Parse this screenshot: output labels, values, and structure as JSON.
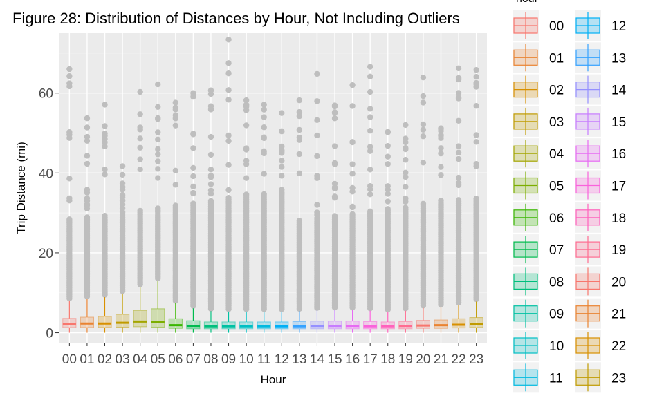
{
  "chart_data": {
    "type": "boxplot",
    "title": "Figure 28: Distribution of Distances by Hour, Not Including Outliers",
    "xlabel": "Hour",
    "ylabel": "Trip Distance (mi)",
    "legend_title": "hour",
    "legend_position": "right",
    "grid": true,
    "ylim": [
      -2.5,
      75
    ],
    "y_ticks": [
      0,
      20,
      40,
      60
    ],
    "categories": [
      "00",
      "01",
      "02",
      "03",
      "04",
      "05",
      "06",
      "07",
      "08",
      "09",
      "10",
      "11",
      "12",
      "13",
      "14",
      "15",
      "16",
      "17",
      "18",
      "19",
      "20",
      "21",
      "22",
      "23"
    ],
    "colors": [
      "#F8766D",
      "#EA8331",
      "#D89000",
      "#C09B00",
      "#A3A500",
      "#7CAE00",
      "#39B600",
      "#00BB4E",
      "#00BF7D",
      "#00C1A3",
      "#00BFC4",
      "#00BAE0",
      "#00B0F6",
      "#35A2FF",
      "#9590FF",
      "#C77CFF",
      "#E76BF3",
      "#FA62DB",
      "#FF62BC",
      "#FF6C91",
      "#F8766D",
      "#EA8331",
      "#D89000",
      "#C09B00"
    ],
    "boxes": [
      {
        "hour": "00",
        "lower_whisker": 0.0,
        "q1": 1.3,
        "median": 2.2,
        "q3": 3.6,
        "upper_whisker": 8.0,
        "outlier_max": 66.0
      },
      {
        "hour": "01",
        "lower_whisker": 0.0,
        "q1": 1.3,
        "median": 2.3,
        "q3": 3.9,
        "upper_whisker": 8.5,
        "outlier_max": 53.7
      },
      {
        "hour": "02",
        "lower_whisker": 0.0,
        "q1": 1.3,
        "median": 2.3,
        "q3": 4.1,
        "upper_whisker": 8.9,
        "outlier_max": 57.1
      },
      {
        "hour": "03",
        "lower_whisker": 0.0,
        "q1": 1.4,
        "median": 2.5,
        "q3": 4.6,
        "upper_whisker": 9.8,
        "outlier_max": 41.7
      },
      {
        "hour": "04",
        "lower_whisker": 0.0,
        "q1": 1.5,
        "median": 2.8,
        "q3": 5.6,
        "upper_whisker": 11.5,
        "outlier_max": 60.3
      },
      {
        "hour": "05",
        "lower_whisker": 0.0,
        "q1": 1.4,
        "median": 2.6,
        "q3": 6.0,
        "upper_whisker": 13.0,
        "outlier_max": 62.2
      },
      {
        "hour": "06",
        "lower_whisker": 0.0,
        "q1": 1.1,
        "median": 1.9,
        "q3": 3.5,
        "upper_whisker": 7.4,
        "outlier_max": 57.6
      },
      {
        "hour": "07",
        "lower_whisker": 0.0,
        "q1": 1.0,
        "median": 1.7,
        "q3": 3.0,
        "upper_whisker": 6.1,
        "outlier_max": 60.0
      },
      {
        "hour": "08",
        "lower_whisker": 0.0,
        "q1": 1.0,
        "median": 1.6,
        "q3": 2.7,
        "upper_whisker": 5.4,
        "outlier_max": 60.7
      },
      {
        "hour": "09",
        "lower_whisker": 0.0,
        "q1": 1.0,
        "median": 1.6,
        "q3": 2.7,
        "upper_whisker": 5.3,
        "outlier_max": 73.4
      },
      {
        "hour": "10",
        "lower_whisker": 0.0,
        "q1": 1.0,
        "median": 1.6,
        "q3": 2.7,
        "upper_whisker": 5.3,
        "outlier_max": 58.2
      },
      {
        "hour": "11",
        "lower_whisker": 0.0,
        "q1": 1.0,
        "median": 1.6,
        "q3": 2.7,
        "upper_whisker": 5.3,
        "outlier_max": 57.1
      },
      {
        "hour": "12",
        "lower_whisker": 0.0,
        "q1": 1.0,
        "median": 1.6,
        "q3": 2.7,
        "upper_whisker": 5.3,
        "outlier_max": 55.0
      },
      {
        "hour": "13",
        "lower_whisker": 0.0,
        "q1": 1.0,
        "median": 1.6,
        "q3": 2.8,
        "upper_whisker": 5.4,
        "outlier_max": 58.2
      },
      {
        "hour": "14",
        "lower_whisker": 0.0,
        "q1": 1.0,
        "median": 1.7,
        "q3": 2.9,
        "upper_whisker": 5.6,
        "outlier_max": 64.8
      },
      {
        "hour": "15",
        "lower_whisker": 0.0,
        "q1": 1.0,
        "median": 1.7,
        "q3": 2.9,
        "upper_whisker": 5.7,
        "outlier_max": 56.9
      },
      {
        "hour": "16",
        "lower_whisker": 0.0,
        "q1": 1.0,
        "median": 1.7,
        "q3": 2.9,
        "upper_whisker": 5.7,
        "outlier_max": 62.0
      },
      {
        "hour": "17",
        "lower_whisker": 0.0,
        "q1": 1.0,
        "median": 1.6,
        "q3": 2.8,
        "upper_whisker": 5.5,
        "outlier_max": 66.6
      },
      {
        "hour": "18",
        "lower_whisker": 0.0,
        "q1": 1.0,
        "median": 1.6,
        "q3": 2.7,
        "upper_whisker": 5.2,
        "outlier_max": 50.3
      },
      {
        "hour": "19",
        "lower_whisker": 0.0,
        "q1": 1.0,
        "median": 1.7,
        "q3": 2.8,
        "upper_whisker": 5.5,
        "outlier_max": 52.0
      },
      {
        "hour": "20",
        "lower_whisker": 0.0,
        "q1": 1.1,
        "median": 1.8,
        "q3": 3.1,
        "upper_whisker": 6.2,
        "outlier_max": 63.9
      },
      {
        "hour": "21",
        "lower_whisker": 0.0,
        "q1": 1.1,
        "median": 1.9,
        "q3": 3.2,
        "upper_whisker": 6.4,
        "outlier_max": 51.2
      },
      {
        "hour": "22",
        "lower_whisker": 0.0,
        "q1": 1.2,
        "median": 2.0,
        "q3": 3.5,
        "upper_whisker": 7.0,
        "outlier_max": 66.2
      },
      {
        "hour": "23",
        "lower_whisker": 0.0,
        "q1": 1.3,
        "median": 2.2,
        "q3": 3.8,
        "upper_whisker": 7.8,
        "outlier_max": 65.8
      }
    ]
  }
}
